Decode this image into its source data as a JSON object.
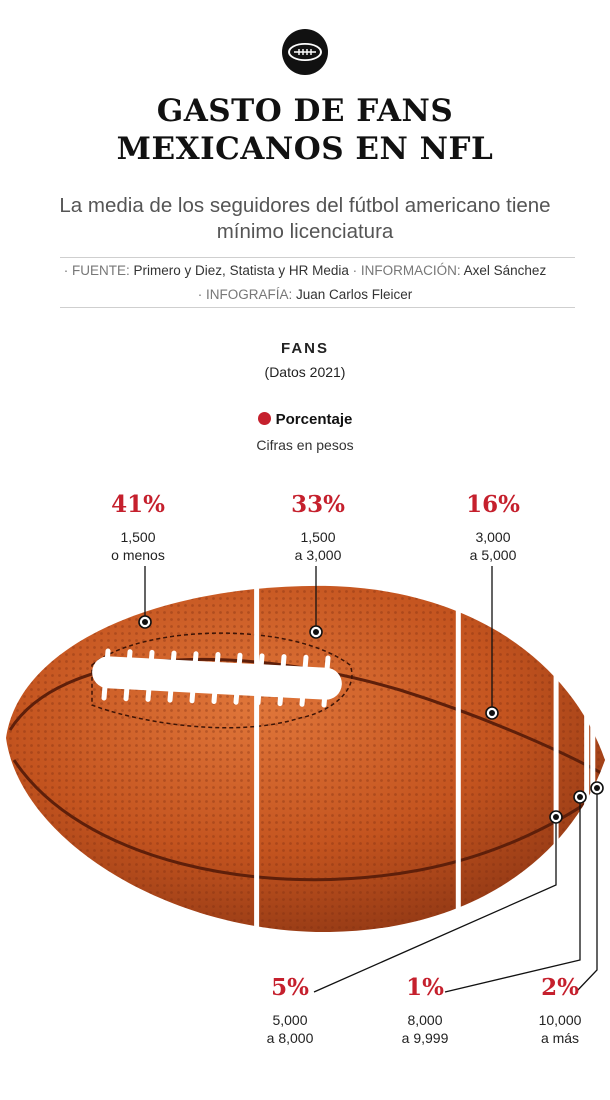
{
  "header": {
    "icon": "football-icon",
    "title_line1": "GASTO DE FANS",
    "title_line2": "MEXICANOS EN NFL",
    "subtitle_line1": "La media de los seguidores del fútbol americano tiene",
    "subtitle_line2": "mínimo licenciatura"
  },
  "credits": {
    "fuente_label": "· FUENTE:",
    "fuente": "Primero y Diez, Statista y HR Media",
    "info_label": "· INFORMACIÓN:",
    "info": "Axel Sánchez",
    "infografia_label": "· INFOGRAFÍA:",
    "infografia": "Juan Carlos Fleicer"
  },
  "section": {
    "title": "FANS",
    "subtitle": "(Datos 2021)",
    "legend": "Porcentaje",
    "units": "Cifras en pesos"
  },
  "colors": {
    "accent": "#c5202d",
    "ball": "#c4541f",
    "ball_dark": "#8a3413",
    "lace": "#ffffff"
  },
  "chart_data": {
    "type": "bar",
    "title": "FANS",
    "subtitle": "(Datos 2021)",
    "unit_note": "Cifras en pesos",
    "series": [
      {
        "name": "Porcentaje",
        "values": [
          41,
          33,
          16,
          5,
          1,
          2
        ]
      }
    ],
    "categories": [
      "1,500 o menos",
      "1,500 a 3,000",
      "3,000 a 5,000",
      "5,000 a 8,000",
      "8,000 a 9,999",
      "10,000 a más"
    ],
    "items": [
      {
        "percent": 41,
        "label": "41%",
        "range_line1": "1,500",
        "range_line2": "o menos"
      },
      {
        "percent": 33,
        "label": "33%",
        "range_line1": "1,500",
        "range_line2": "a 3,000"
      },
      {
        "percent": 16,
        "label": "16%",
        "range_line1": "3,000",
        "range_line2": "a 5,000"
      },
      {
        "percent": 5,
        "label": "5%",
        "range_line1": "5,000",
        "range_line2": "a 8,000"
      },
      {
        "percent": 1,
        "label": "1%",
        "range_line1": "8,000",
        "range_line2": "a 9,999"
      },
      {
        "percent": 2,
        "label": "2%",
        "range_line1": "10,000",
        "range_line2": "a más"
      }
    ]
  }
}
